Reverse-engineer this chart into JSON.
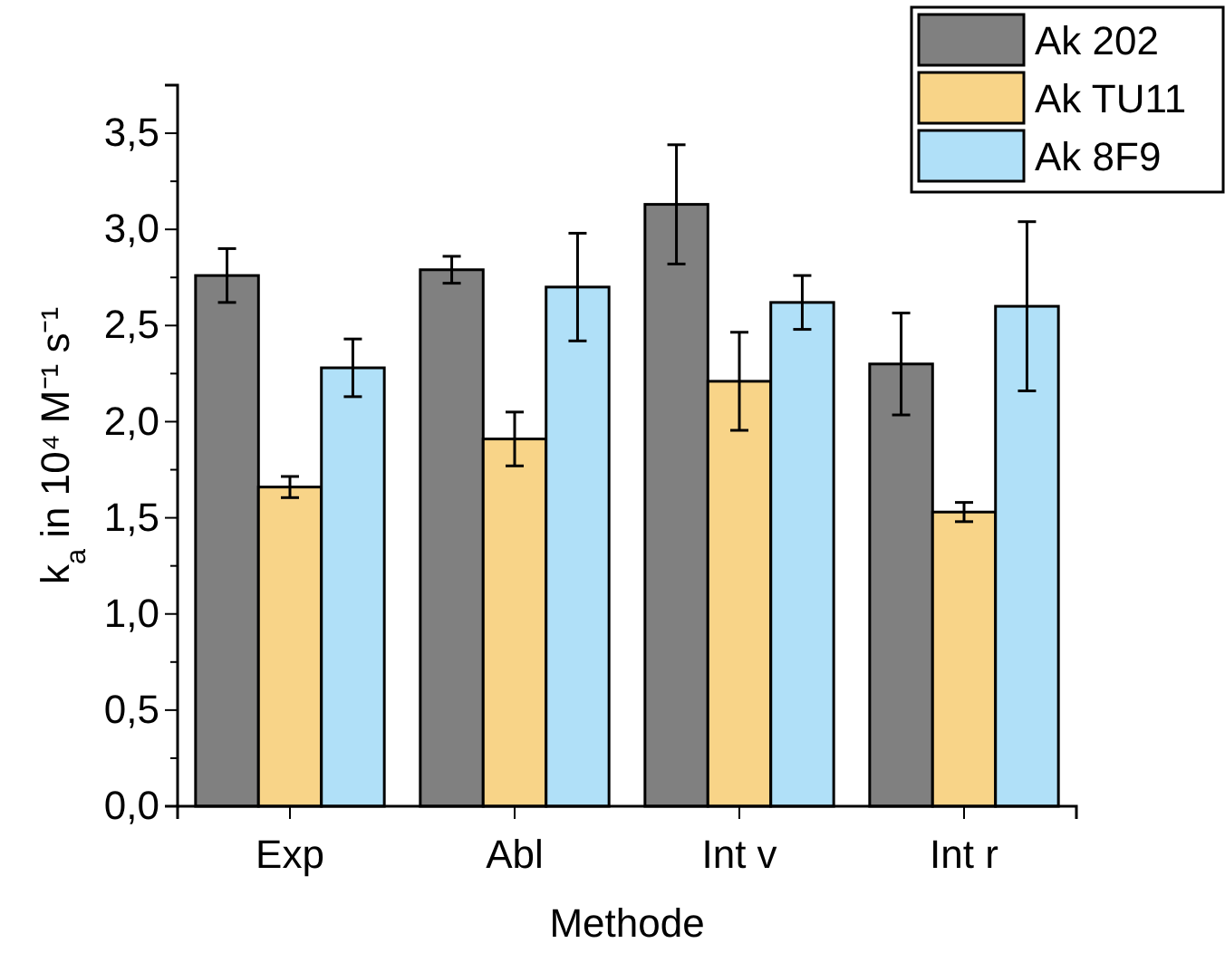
{
  "chart_data": {
    "type": "bar",
    "xlabel": "Methode",
    "ylabel": "k$_{a}$ in 10⁴ M⁻¹ s⁻¹",
    "categories": [
      "Exp",
      "Abl",
      "Int v",
      "Int r"
    ],
    "series": [
      {
        "name": "Ak 202",
        "color": "#808080",
        "values": [
          2.76,
          2.79,
          3.13,
          2.3
        ],
        "errors": [
          0.14,
          0.07,
          0.31,
          0.265
        ]
      },
      {
        "name": "Ak TU11",
        "color": "#f8d488",
        "values": [
          1.66,
          1.91,
          2.21,
          1.53
        ],
        "errors": [
          0.055,
          0.14,
          0.255,
          0.05
        ]
      },
      {
        "name": "Ak 8F9",
        "color": "#b0e0f8",
        "values": [
          2.28,
          2.7,
          2.62,
          2.6
        ],
        "errors": [
          0.15,
          0.28,
          0.14,
          0.44
        ]
      }
    ],
    "ylim": [
      0,
      3.75
    ],
    "yticks": [
      {
        "value": 0,
        "label": "0,0"
      },
      {
        "value": 0.5,
        "label": "0,5"
      },
      {
        "value": 1,
        "label": "1,0"
      },
      {
        "value": 1.5,
        "label": "1,5"
      },
      {
        "value": 2,
        "label": "2,0"
      },
      {
        "value": 2.5,
        "label": "2,5"
      },
      {
        "value": 3,
        "label": "3,0"
      },
      {
        "value": 3.5,
        "label": "3,5"
      }
    ],
    "legend": "top right",
    "grid": false
  }
}
